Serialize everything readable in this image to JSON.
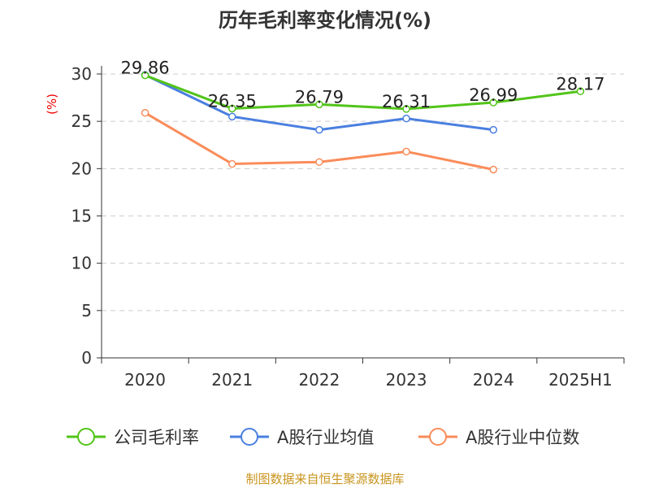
{
  "chart_data": {
    "type": "line",
    "title": "历年毛利率变化情况(%)",
    "ylabel": "(%)",
    "xlabel": "",
    "categories": [
      "2020",
      "2021",
      "2022",
      "2023",
      "2024",
      "2025H1"
    ],
    "ylim": [
      0,
      30
    ],
    "yticks": [
      0,
      5,
      10,
      15,
      20,
      25,
      30
    ],
    "grid": true,
    "legend_position": "bottom",
    "series": [
      {
        "name": "公司毛利率",
        "color": "#52c41a",
        "values": [
          29.86,
          26.35,
          26.79,
          26.31,
          26.99,
          28.17
        ],
        "labels": [
          "29.86",
          "26.35",
          "26.79",
          "26.31",
          "26.99",
          "28.17"
        ]
      },
      {
        "name": "A股行业均值",
        "color": "#4a7fe0",
        "values": [
          29.9,
          25.5,
          24.1,
          25.3,
          24.1,
          null
        ]
      },
      {
        "name": "A股行业中位数",
        "color": "#fa8c5a",
        "values": [
          25.9,
          20.5,
          20.7,
          21.8,
          19.9,
          null
        ]
      }
    ],
    "source": "制图数据来自恒生聚源数据库"
  }
}
